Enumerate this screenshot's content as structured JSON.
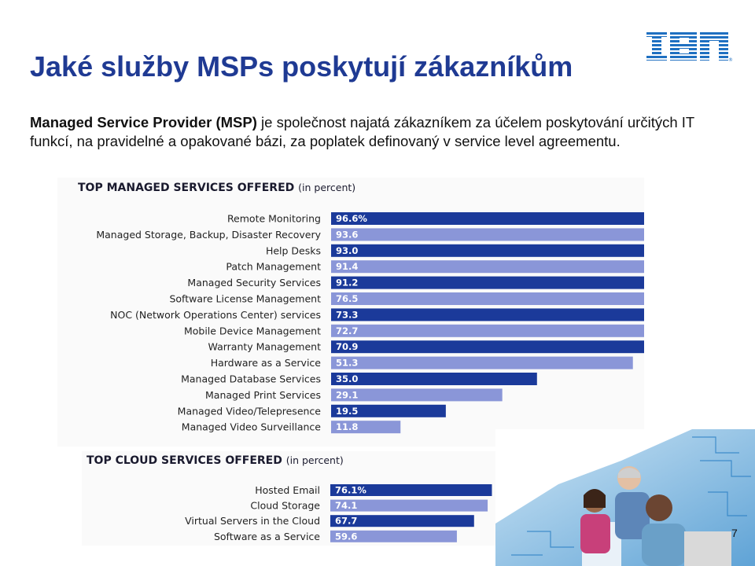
{
  "slide": {
    "title": "Jaké služby MSPs poskytují zákazníkům",
    "description_bold": "Managed Service Provider (MSP)",
    "description_rest": " je společnost najatá zákazníkem za účelem poskytování určitých IT funkcí, na pravidelné a opakované bázi, za poplatek definovaný v service level agreementu.",
    "page_number": "7",
    "logo_text": "IBM"
  },
  "colors": {
    "title": "#1f3a93",
    "bar_dark": "#1b3a9a",
    "bar_light": "#8a96d8",
    "ibm_blue": "#1f70c1"
  },
  "chart_data": [
    {
      "type": "bar",
      "orientation": "horizontal",
      "title": "TOP MANAGED SERVICES OFFERED",
      "title_unit": "(in percent)",
      "categories": [
        "Remote Monitoring",
        "Managed Storage, Backup, Disaster Recovery",
        "Help Desks",
        "Patch Management",
        "Managed Security Services",
        "Software License Management",
        "NOC (Network Operations Center) services",
        "Mobile Device Management",
        "Warranty Management",
        "Hardware as a Service",
        "Managed Database Services",
        "Managed Print Services",
        "Managed Video/Telepresence",
        "Managed Video Surveillance"
      ],
      "values": [
        96.6,
        93.6,
        93.0,
        91.4,
        91.2,
        76.5,
        73.3,
        72.7,
        70.9,
        51.3,
        35.0,
        29.1,
        19.5,
        11.8
      ],
      "value_labels": [
        "96.6%",
        "93.6",
        "93.0",
        "91.4",
        "91.2",
        "76.5",
        "73.3",
        "72.7",
        "70.9",
        "51.3",
        "35.0",
        "29.1",
        "19.5",
        "11.8"
      ],
      "xlim": [
        0,
        100
      ]
    },
    {
      "type": "bar",
      "orientation": "horizontal",
      "title": "TOP CLOUD SERVICES OFFERED",
      "title_unit": "(in percent)",
      "categories": [
        "Hosted Email",
        "Cloud Storage",
        "Virtual Servers in the Cloud",
        "Software as a Service"
      ],
      "values": [
        76.1,
        74.1,
        67.7,
        59.6
      ],
      "value_labels": [
        "76.1%",
        "74.1",
        "67.7",
        "59.6"
      ],
      "xlim": [
        0,
        100
      ]
    }
  ]
}
